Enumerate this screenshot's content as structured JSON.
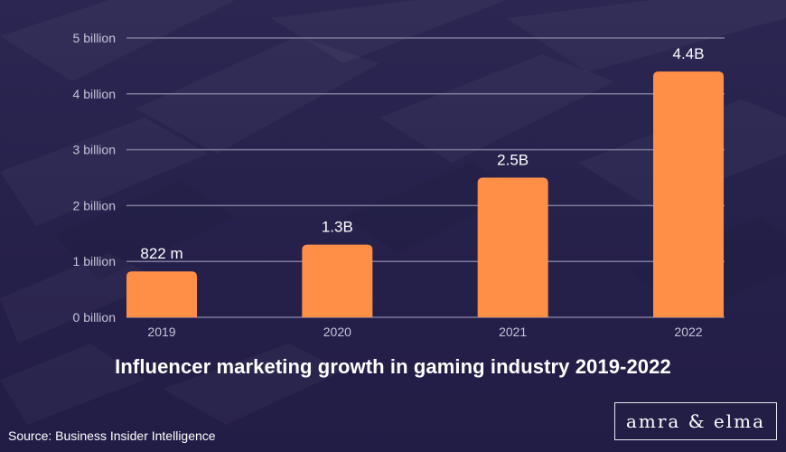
{
  "chart_data": {
    "type": "bar",
    "title": "Influencer marketing growth in gaming industry 2019-2022",
    "categories": [
      "2019",
      "2020",
      "2021",
      "2022"
    ],
    "values": [
      0.822,
      1.3,
      2.5,
      4.4
    ],
    "data_labels": [
      "822 m",
      "1.3B",
      "2.5B",
      "4.4B"
    ],
    "ylim": [
      0,
      5
    ],
    "yticks": [
      {
        "value": 0,
        "label": "0 billion"
      },
      {
        "value": 1,
        "label": "1 billion"
      },
      {
        "value": 2,
        "label": "2 billion"
      },
      {
        "value": 3,
        "label": "3 billion"
      },
      {
        "value": 4,
        "label": "4 billion"
      },
      {
        "value": 5,
        "label": "5 billion"
      }
    ],
    "grid": true,
    "legend": "none",
    "bar_color": "#ff8f47",
    "grid_color": "#7d7a99",
    "background_color": "#26224a"
  },
  "footer": {
    "source": "Source: Business Insider Intelligence",
    "brand": "amra & elma"
  }
}
